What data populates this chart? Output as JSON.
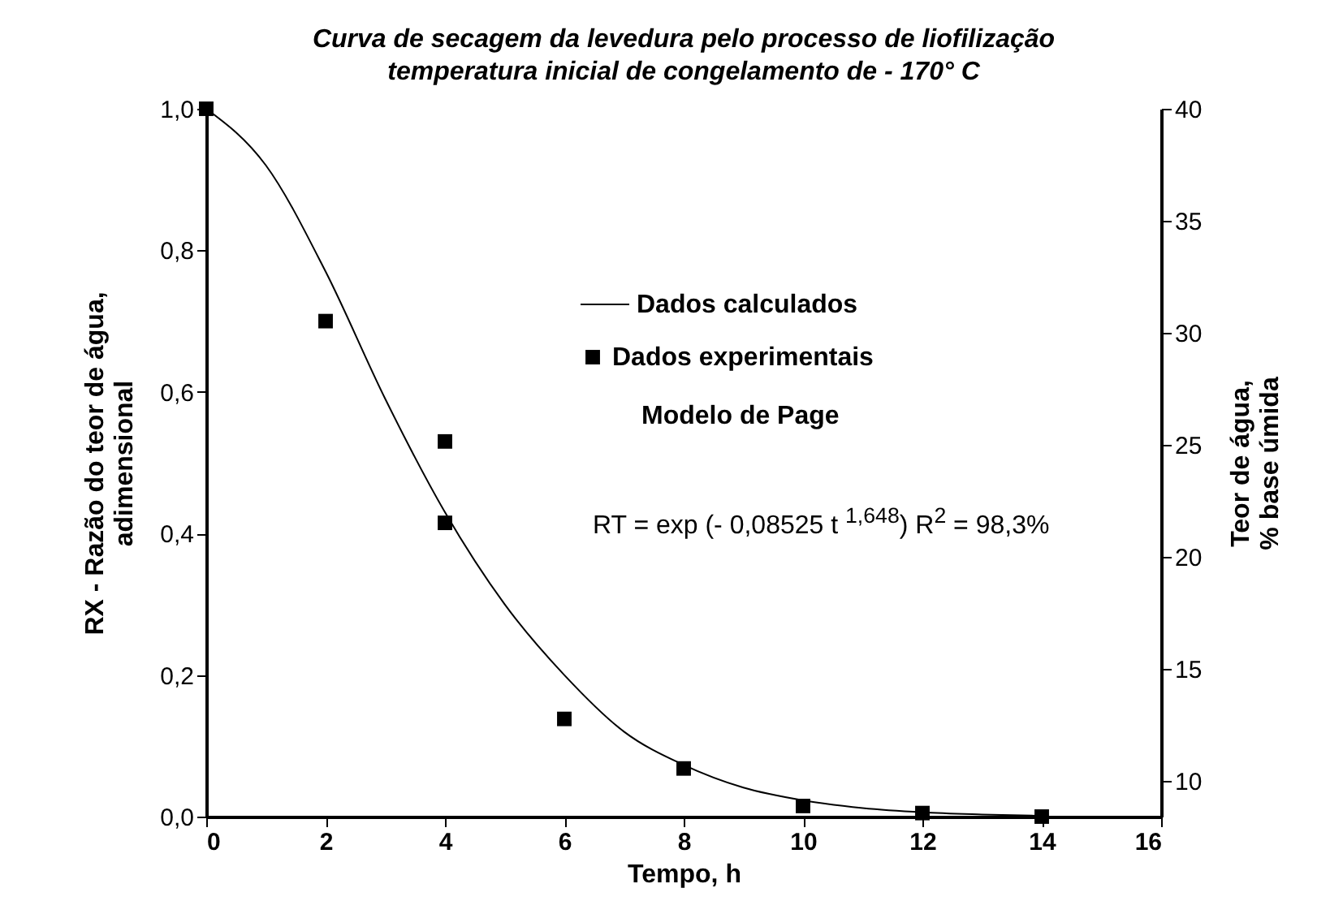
{
  "chart_data": {
    "type": "scatter",
    "title": "Curva de secagem da levedura pelo processo de liofilização\ntemperatura inicial de congelamento de - 170° C",
    "xlabel": "Tempo, h",
    "ylabel": "RX - Razão do teor de água,\nadimensional",
    "y2label": "Teor de água,\n% base úmida",
    "series": [
      {
        "name": "Dados calculados",
        "type": "line",
        "color": "#000000",
        "marker": "none",
        "line_style": "solid",
        "x": [
          0,
          1,
          2,
          3,
          4,
          5,
          6,
          7,
          8,
          9,
          10,
          11,
          12,
          13,
          14
        ],
        "values": [
          1.0,
          0.92,
          0.77,
          0.59,
          0.43,
          0.3,
          0.2,
          0.12,
          0.073,
          0.041,
          0.023,
          0.012,
          0.006,
          0.003,
          0.001
        ]
      },
      {
        "name": "Dados experimentais",
        "color": "#000000",
        "marker": "square",
        "x": [
          0,
          2,
          4,
          4,
          6,
          8,
          10,
          12,
          14
        ],
        "values": [
          1.0,
          0.7,
          0.53,
          0.415,
          0.138,
          0.068,
          0.015,
          0.005,
          0.0
        ]
      }
    ],
    "xlim": [
      0,
      16
    ],
    "xticks": [
      0,
      2,
      4,
      6,
      8,
      10,
      12,
      14,
      16
    ],
    "ylim": [
      0,
      1
    ],
    "yticks": [
      {
        "value": 0,
        "label": "0,0"
      },
      {
        "value": 0.2,
        "label": "0,2"
      },
      {
        "value": 0.4,
        "label": "0,4"
      },
      {
        "value": 0.6,
        "label": "0,6"
      },
      {
        "value": 0.8,
        "label": "0,8"
      },
      {
        "value": 1,
        "label": "1,0"
      }
    ],
    "y2lim": [
      8.4,
      40
    ],
    "y2ticks": [
      10,
      15,
      20,
      25,
      30,
      35,
      40
    ],
    "annotations": [
      "Modelo de Page",
      "RT = exp (- 0,08525 t $^{1,648}$)  R$^{2}$ = 98,3%"
    ],
    "legend": "top right",
    "grid": false
  }
}
